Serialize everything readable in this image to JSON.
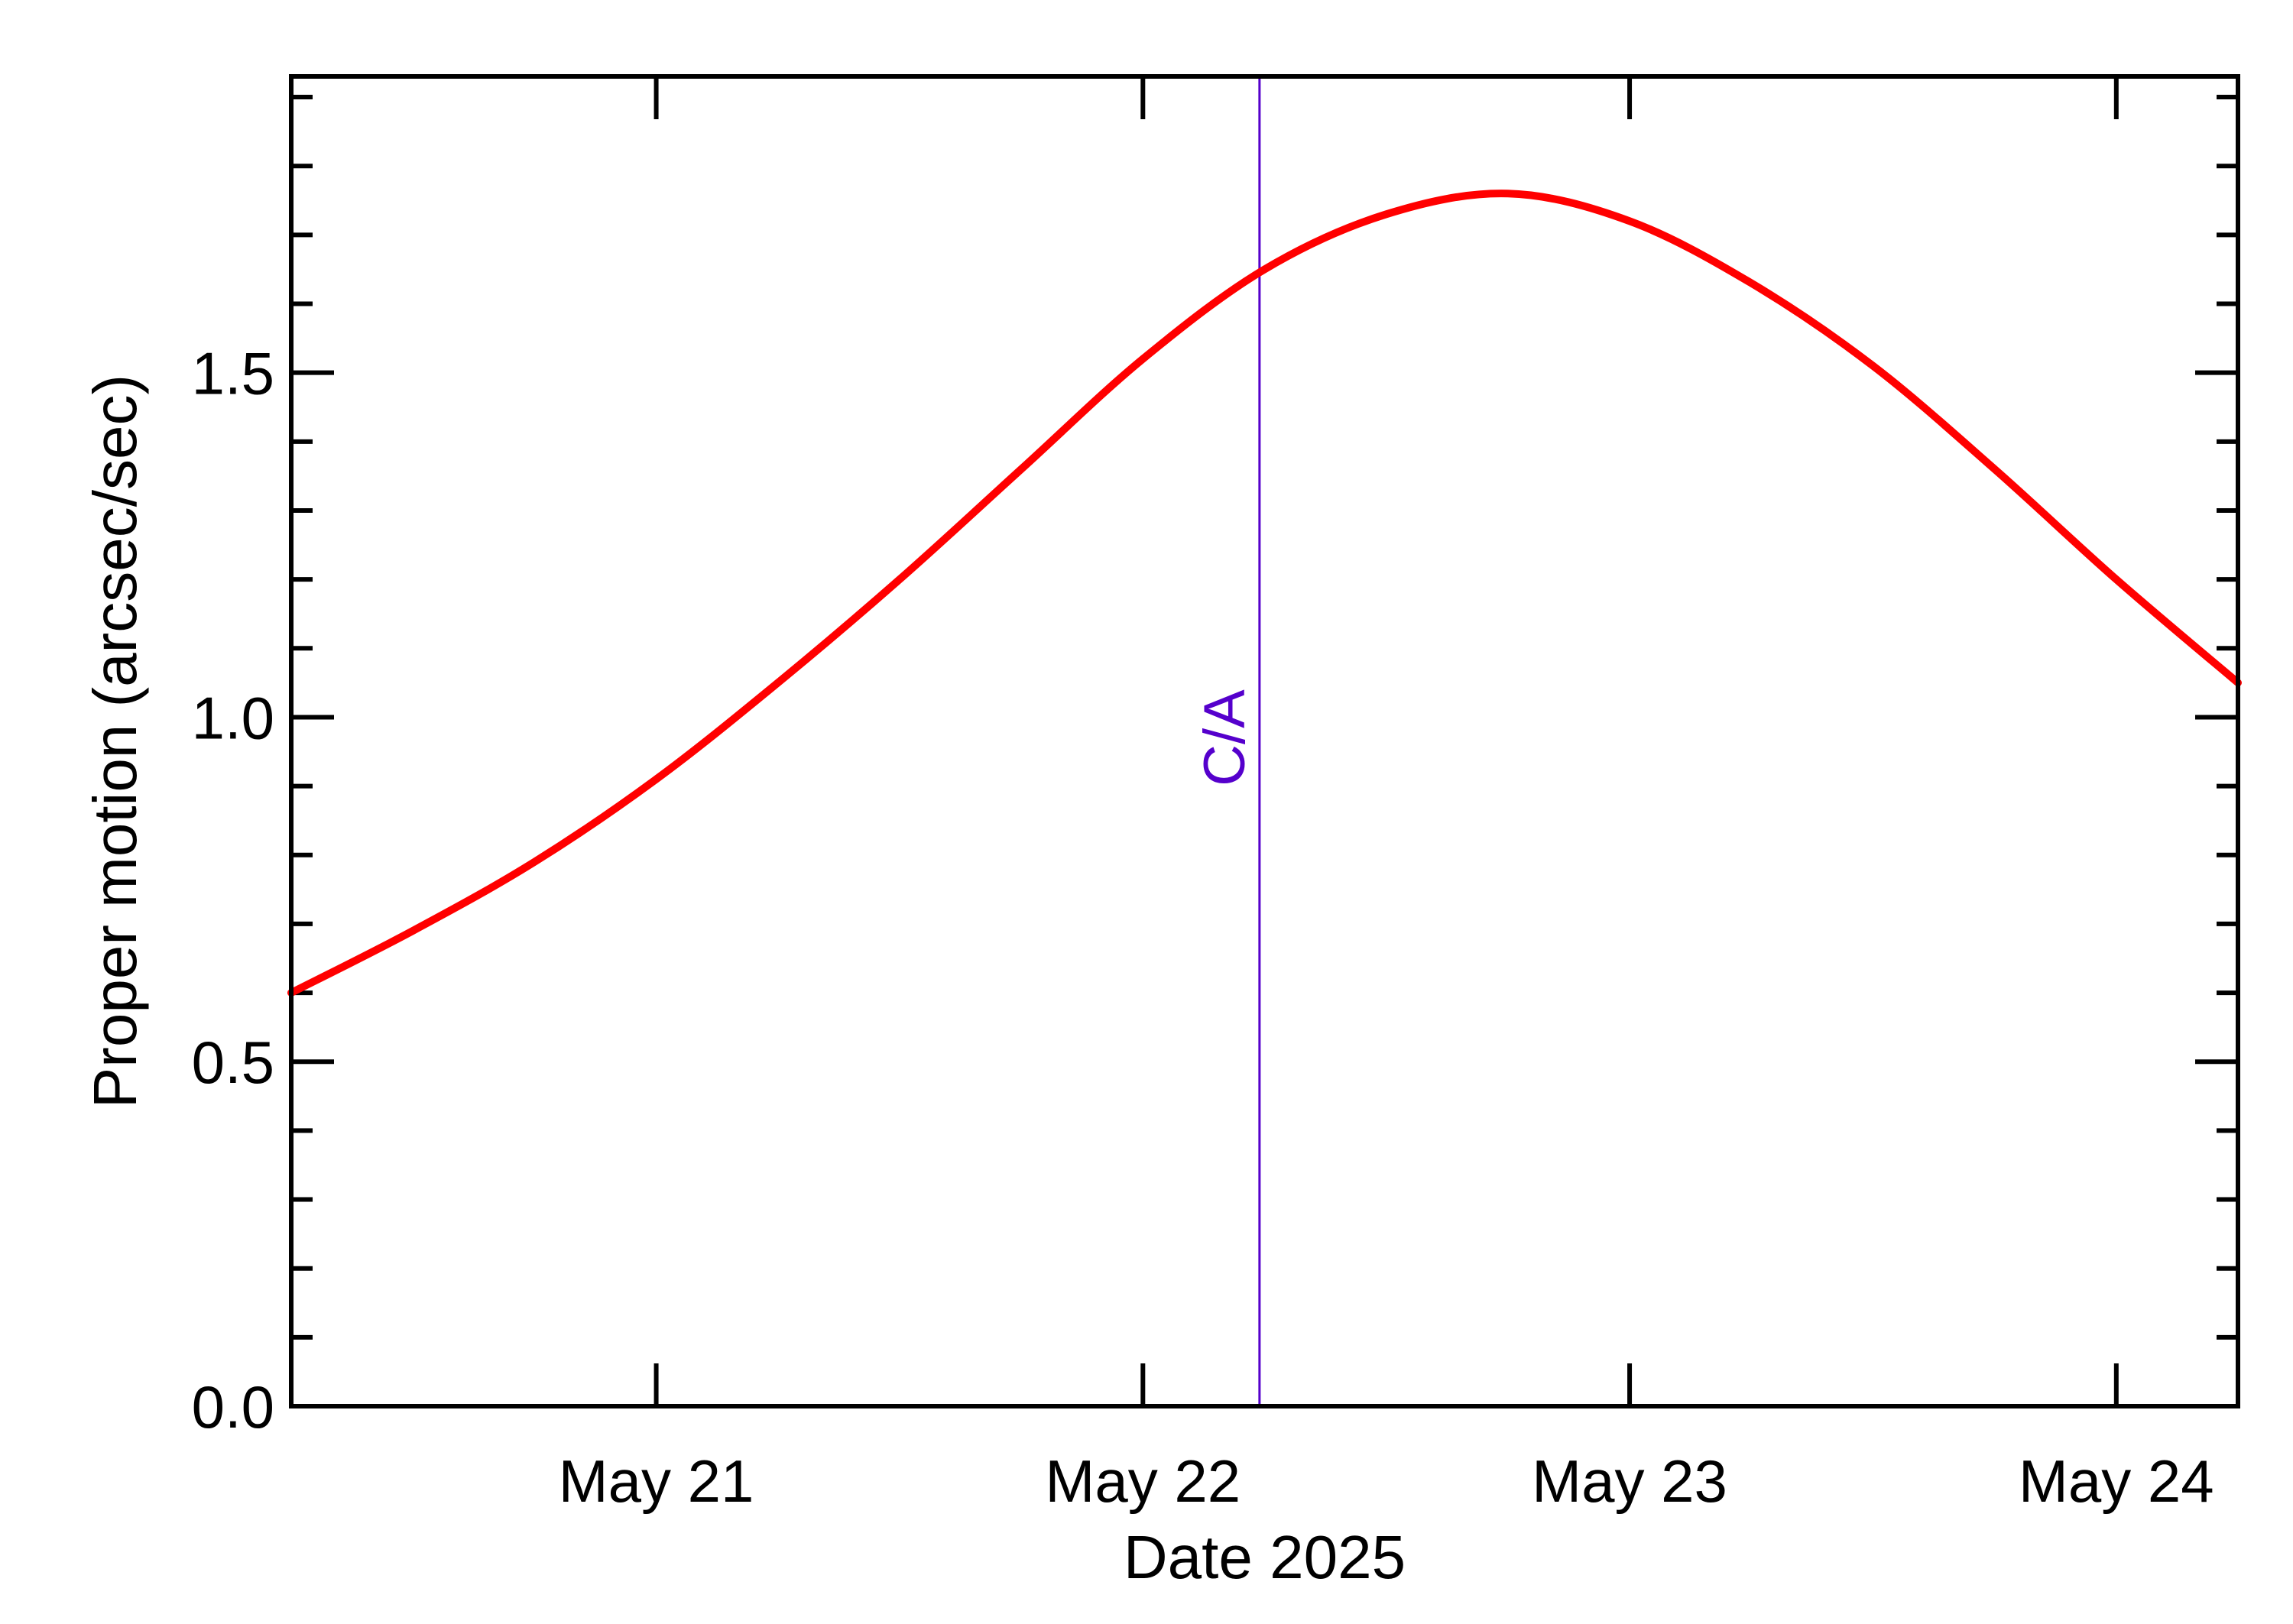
{
  "chart_data": {
    "type": "line",
    "xlabel": "Date 2025",
    "ylabel": "Proper motion (arcsec/sec)",
    "x_ticks": [
      {
        "date": "2025-05-21",
        "label": "May 21"
      },
      {
        "date": "2025-05-22",
        "label": "May 22"
      },
      {
        "date": "2025-05-23",
        "label": "May 23"
      },
      {
        "date": "2025-05-24",
        "label": "May 24"
      }
    ],
    "xlim": [
      "2025-05-20T06:00",
      "2025-05-24T06:00"
    ],
    "y_ticks": [
      "0.0",
      "0.5",
      "1.0",
      "1.5"
    ],
    "ylim": [
      0,
      1.93
    ],
    "y_minor_step": 0.1,
    "grid": false,
    "series": [
      {
        "color": "#ff0000",
        "points": [
          {
            "x": "2025-05-20T06:00",
            "y": 0.6
          },
          {
            "x": "2025-05-20T12:00",
            "y": 0.69
          },
          {
            "x": "2025-05-20T18:00",
            "y": 0.79
          },
          {
            "x": "2025-05-21T00:00",
            "y": 0.91
          },
          {
            "x": "2025-05-21T06:00",
            "y": 1.05
          },
          {
            "x": "2025-05-21T12:00",
            "y": 1.2
          },
          {
            "x": "2025-05-21T18:00",
            "y": 1.36
          },
          {
            "x": "2025-05-22T00:00",
            "y": 1.52
          },
          {
            "x": "2025-05-22T06:00",
            "y": 1.65
          },
          {
            "x": "2025-05-22T12:00",
            "y": 1.73
          },
          {
            "x": "2025-05-22T18:00",
            "y": 1.76
          },
          {
            "x": "2025-05-23T00:00",
            "y": 1.72
          },
          {
            "x": "2025-05-23T06:00",
            "y": 1.63
          },
          {
            "x": "2025-05-23T12:00",
            "y": 1.51
          },
          {
            "x": "2025-05-23T18:00",
            "y": 1.36
          },
          {
            "x": "2025-05-24T00:00",
            "y": 1.2
          },
          {
            "x": "2025-05-24T06:00",
            "y": 1.05
          }
        ]
      }
    ],
    "annotations": [
      {
        "type": "vline",
        "x": "2025-05-22T05:45",
        "label": "C/A",
        "color": "#5500cc"
      }
    ]
  }
}
